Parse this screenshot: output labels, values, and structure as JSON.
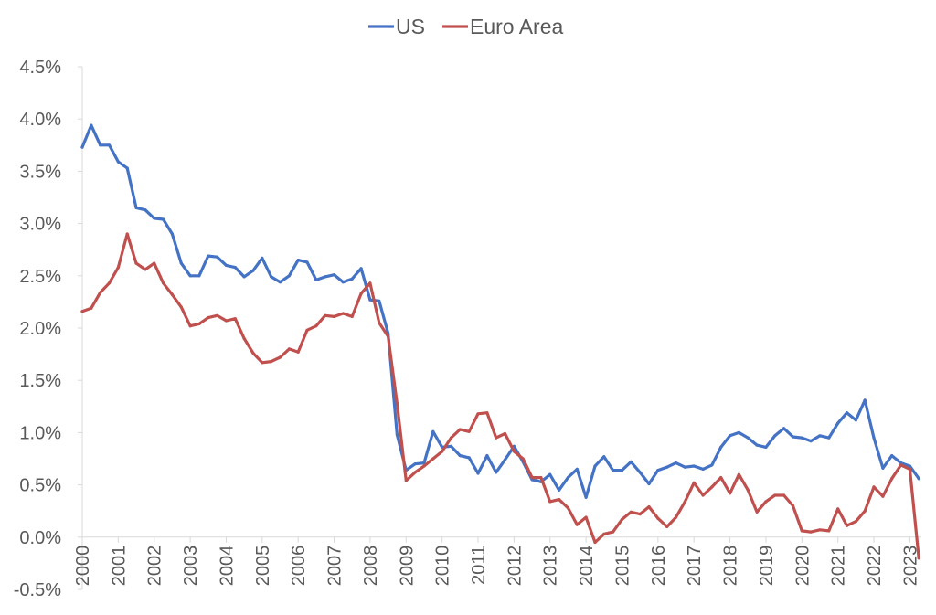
{
  "chart_data": {
    "type": "line",
    "title": "",
    "xlabel": "",
    "ylabel": "",
    "ylim": [
      -0.005,
      0.045
    ],
    "y_ticks": [
      -0.005,
      0.0,
      0.005,
      0.01,
      0.015,
      0.02,
      0.025,
      0.03,
      0.035,
      0.04,
      0.045
    ],
    "y_tick_labels": [
      "-0.5%",
      "0.0%",
      "0.5%",
      "1.0%",
      "1.5%",
      "2.0%",
      "2.5%",
      "3.0%",
      "3.5%",
      "4.0%",
      "4.5%"
    ],
    "x_ticks": [
      2000,
      2001,
      2002,
      2003,
      2004,
      2005,
      2006,
      2007,
      2008,
      2009,
      2010,
      2011,
      2012,
      2013,
      2014,
      2015,
      2016,
      2017,
      2018,
      2019,
      2020,
      2021,
      2022,
      2023
    ],
    "x_tick_labels": [
      "2000",
      "2001",
      "2002",
      "2003",
      "2004",
      "2005",
      "2006",
      "2007",
      "2008",
      "2009",
      "2010",
      "2011",
      "2012",
      "2013",
      "2014",
      "2015",
      "2016",
      "2017",
      "2018",
      "2019",
      "2020",
      "2021",
      "2022",
      "2023"
    ],
    "grid": false,
    "legend_position": "top-center",
    "series": [
      {
        "name": "US",
        "color": "#4472C4",
        "x": [
          2000.0,
          2000.25,
          2000.5,
          2000.75,
          2001.0,
          2001.25,
          2001.5,
          2001.75,
          2002.0,
          2002.25,
          2002.5,
          2002.75,
          2003.0,
          2003.25,
          2003.5,
          2003.75,
          2004.0,
          2004.25,
          2004.5,
          2004.75,
          2005.0,
          2005.25,
          2005.5,
          2005.75,
          2006.0,
          2006.25,
          2006.5,
          2006.75,
          2007.0,
          2007.25,
          2007.5,
          2007.75,
          2008.0,
          2008.25,
          2008.5,
          2008.75,
          2009.0,
          2009.25,
          2009.5,
          2009.75,
          2010.0,
          2010.25,
          2010.5,
          2010.75,
          2011.0,
          2011.25,
          2011.5,
          2011.75,
          2012.0,
          2012.25,
          2012.5,
          2012.75,
          2013.0,
          2013.25,
          2013.5,
          2013.75,
          2014.0,
          2014.25,
          2014.5,
          2014.75,
          2015.0,
          2015.25,
          2015.5,
          2015.75,
          2016.0,
          2016.25,
          2016.5,
          2016.75,
          2017.0,
          2017.25,
          2017.5,
          2017.75,
          2018.0,
          2018.25,
          2018.5,
          2018.75,
          2019.0,
          2019.25,
          2019.5,
          2019.75,
          2020.0,
          2020.25,
          2020.5,
          2020.75,
          2021.0,
          2021.25,
          2021.5,
          2021.75,
          2022.0,
          2022.25,
          2022.5,
          2022.75,
          2023.0,
          2023.25
        ],
        "y": [
          0.0373,
          0.0394,
          0.0375,
          0.0375,
          0.0359,
          0.0353,
          0.0315,
          0.0313,
          0.0305,
          0.0304,
          0.029,
          0.0262,
          0.025,
          0.025,
          0.0269,
          0.0268,
          0.026,
          0.0258,
          0.0249,
          0.0255,
          0.0267,
          0.0249,
          0.0244,
          0.025,
          0.0265,
          0.0263,
          0.0246,
          0.0249,
          0.0251,
          0.0244,
          0.0247,
          0.0257,
          0.0227,
          0.0226,
          0.0195,
          0.0098,
          0.0064,
          0.007,
          0.0071,
          0.0101,
          0.0086,
          0.0087,
          0.0078,
          0.0076,
          0.0061,
          0.0078,
          0.0062,
          0.0074,
          0.0087,
          0.0072,
          0.0055,
          0.0053,
          0.006,
          0.0045,
          0.0057,
          0.0065,
          0.0038,
          0.0068,
          0.0077,
          0.0064,
          0.0064,
          0.0072,
          0.0062,
          0.0051,
          0.0064,
          0.0067,
          0.0071,
          0.0067,
          0.0068,
          0.0065,
          0.0069,
          0.0086,
          0.0097,
          0.01,
          0.0095,
          0.0088,
          0.0086,
          0.0097,
          0.0104,
          0.0096,
          0.0095,
          0.0092,
          0.0097,
          0.0095,
          0.0109,
          0.0119,
          0.0112,
          0.0131,
          0.0095,
          0.0066,
          0.0078,
          0.0071,
          0.0068,
          0.0056
        ]
      },
      {
        "name": "Euro Area",
        "color": "#C0504D",
        "x": [
          2000.0,
          2000.25,
          2000.5,
          2000.75,
          2001.0,
          2001.25,
          2001.5,
          2001.75,
          2002.0,
          2002.25,
          2002.5,
          2002.75,
          2003.0,
          2003.25,
          2003.5,
          2003.75,
          2004.0,
          2004.25,
          2004.5,
          2004.75,
          2005.0,
          2005.25,
          2005.5,
          2005.75,
          2006.0,
          2006.25,
          2006.5,
          2006.75,
          2007.0,
          2007.25,
          2007.5,
          2007.75,
          2008.0,
          2008.25,
          2008.5,
          2008.75,
          2009.0,
          2009.25,
          2009.5,
          2009.75,
          2010.0,
          2010.25,
          2010.5,
          2010.75,
          2011.0,
          2011.25,
          2011.5,
          2011.75,
          2012.0,
          2012.25,
          2012.5,
          2012.75,
          2013.0,
          2013.25,
          2013.5,
          2013.75,
          2014.0,
          2014.25,
          2014.5,
          2014.75,
          2015.0,
          2015.25,
          2015.5,
          2015.75,
          2016.0,
          2016.25,
          2016.5,
          2016.75,
          2017.0,
          2017.25,
          2017.5,
          2017.75,
          2018.0,
          2018.25,
          2018.5,
          2018.75,
          2019.0,
          2019.25,
          2019.5,
          2019.75,
          2020.0,
          2020.25,
          2020.5,
          2020.75,
          2021.0,
          2021.25,
          2021.5,
          2021.75,
          2022.0,
          2022.25,
          2022.5,
          2022.75,
          2023.0,
          2023.25
        ],
        "y": [
          0.0216,
          0.0219,
          0.0234,
          0.0243,
          0.0258,
          0.029,
          0.0262,
          0.0256,
          0.0262,
          0.0243,
          0.0232,
          0.022,
          0.0202,
          0.0204,
          0.021,
          0.0212,
          0.0207,
          0.0209,
          0.019,
          0.0176,
          0.0167,
          0.0168,
          0.0172,
          0.018,
          0.0177,
          0.0198,
          0.0202,
          0.0212,
          0.0211,
          0.0214,
          0.0211,
          0.0233,
          0.0243,
          0.0205,
          0.0192,
          0.0128,
          0.0054,
          0.0062,
          0.0068,
          0.0075,
          0.0082,
          0.0095,
          0.0103,
          0.0101,
          0.0118,
          0.0119,
          0.0095,
          0.0099,
          0.0082,
          0.0075,
          0.0057,
          0.0057,
          0.0034,
          0.0036,
          0.0028,
          0.0012,
          0.0019,
          -0.0005,
          0.0003,
          0.0005,
          0.0017,
          0.0024,
          0.0022,
          0.0029,
          0.0018,
          0.001,
          0.0019,
          0.0034,
          0.0052,
          0.004,
          0.0048,
          0.0057,
          0.0042,
          0.006,
          0.0045,
          0.0024,
          0.0034,
          0.004,
          0.004,
          0.003,
          0.0006,
          0.0005,
          0.0007,
          0.0006,
          0.0027,
          0.0011,
          0.0015,
          0.0025,
          0.0048,
          0.0039,
          0.0056,
          0.0069,
          0.0065,
          -0.002
        ]
      }
    ]
  }
}
